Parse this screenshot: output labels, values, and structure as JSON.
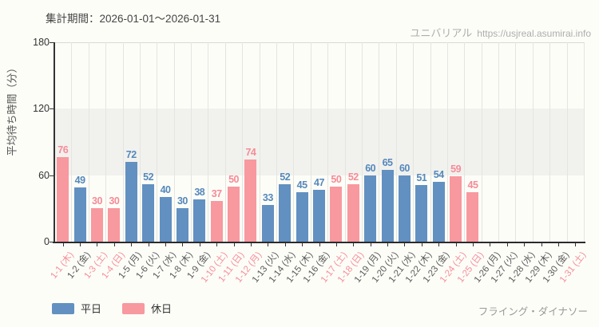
{
  "header": {
    "period_label": "集計期間：2026-01-01～2026-01-31",
    "site_name": "ユニバリアル",
    "site_url": "https://usjreal.asumirai.info"
  },
  "footer": {
    "attraction_name": "フライング・ダイナソー"
  },
  "chart_data": {
    "type": "bar",
    "title": "",
    "xlabel": "",
    "ylabel": "平均待ち時間（分）",
    "ylim": [
      0,
      180
    ],
    "yticks": [
      0,
      60,
      120,
      180
    ],
    "shaded_band": [
      60,
      120
    ],
    "grid": true,
    "legend_position": "bottom-left",
    "colors": {
      "weekday": "#6290c1",
      "holiday": "#f8989f",
      "weekday_text": "#5588bb",
      "holiday_text": "#f68b95",
      "weekday_axis_text": "#5a5a5a",
      "holiday_axis_text": "#f58f99"
    },
    "legend": [
      {
        "label": "平日",
        "type": "weekday"
      },
      {
        "label": "休日",
        "type": "holiday"
      }
    ],
    "categories": [
      "1-1 (木)",
      "1-2 (金)",
      "1-3 (土)",
      "1-4 (日)",
      "1-5 (月)",
      "1-6 (火)",
      "1-7 (水)",
      "1-8 (木)",
      "1-9 (金)",
      "1-10 (土)",
      "1-11 (日)",
      "1-12 (月)",
      "1-13 (火)",
      "1-14 (水)",
      "1-15 (木)",
      "1-16 (金)",
      "1-17 (土)",
      "1-18 (日)",
      "1-19 (月)",
      "1-20 (火)",
      "1-21 (水)",
      "1-22 (木)",
      "1-23 (金)",
      "1-24 (土)",
      "1-25 (日)",
      "1-26 (月)",
      "1-27 (火)",
      "1-28 (水)",
      "1-29 (木)",
      "1-30 (金)",
      "1-31 (土)"
    ],
    "day_types": [
      "holiday",
      "weekday",
      "holiday",
      "holiday",
      "weekday",
      "weekday",
      "weekday",
      "weekday",
      "weekday",
      "holiday",
      "holiday",
      "holiday",
      "weekday",
      "weekday",
      "weekday",
      "weekday",
      "holiday",
      "holiday",
      "weekday",
      "weekday",
      "weekday",
      "weekday",
      "weekday",
      "holiday",
      "holiday",
      "weekday",
      "weekday",
      "weekday",
      "weekday",
      "weekday",
      "holiday"
    ],
    "values": [
      76,
      49,
      30,
      30,
      72,
      52,
      40,
      30,
      38,
      37,
      50,
      74,
      33,
      52,
      45,
      47,
      50,
      52,
      60,
      65,
      60,
      51,
      54,
      59,
      45,
      null,
      null,
      null,
      null,
      null,
      null
    ]
  }
}
